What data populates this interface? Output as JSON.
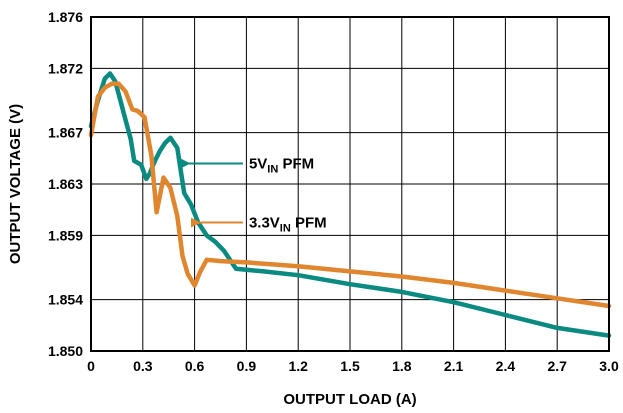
{
  "chart_data": {
    "type": "line",
    "title": "",
    "xlabel": "OUTPUT LOAD (A)",
    "ylabel": "OUTPUT VOLTAGE (V)",
    "xlim": [
      0,
      3.0
    ],
    "ylim": [
      1.85,
      1.876
    ],
    "x_ticks": [
      "0",
      "0.3",
      "0.6",
      "0.9",
      "1.2",
      "1.5",
      "1.8",
      "2.1",
      "2.4",
      "2.7",
      "3.0"
    ],
    "x_tick_values": [
      0,
      0.3,
      0.6,
      0.9,
      1.2,
      1.5,
      1.8,
      2.1,
      2.4,
      2.7,
      3.0
    ],
    "y_ticks": [
      "1.850",
      "1.854",
      "1.859",
      "1.863",
      "1.867",
      "1.872",
      "1.876"
    ],
    "y_tick_values": [
      1.85,
      1.854,
      1.859,
      1.863,
      1.867,
      1.872,
      1.876
    ],
    "grid": true,
    "series": [
      {
        "color": "#0a8a80",
        "label_main": "5V",
        "label_sub": "IN",
        "label_tail": " PFM",
        "x": [
          0,
          0.04,
          0.08,
          0.11,
          0.14,
          0.17,
          0.2,
          0.23,
          0.25,
          0.29,
          0.32,
          0.34,
          0.37,
          0.4,
          0.43,
          0.46,
          0.5,
          0.54,
          0.58,
          0.62,
          0.67,
          0.72,
          0.77,
          0.84,
          0.92,
          1.0,
          1.2,
          1.5,
          1.8,
          2.1,
          2.4,
          2.7,
          3.0
        ],
        "y": [
          1.8675,
          1.8695,
          1.8712,
          1.8716,
          1.871,
          1.8695,
          1.868,
          1.8665,
          1.8648,
          1.8645,
          1.8634,
          1.8638,
          1.8648,
          1.8656,
          1.8662,
          1.8666,
          1.8658,
          1.8623,
          1.8614,
          1.86,
          1.859,
          1.8585,
          1.8578,
          1.8564,
          1.8563,
          1.8562,
          1.8559,
          1.8552,
          1.8546,
          1.8538,
          1.8528,
          1.8518,
          1.8512
        ]
      },
      {
        "color": "#e0862f",
        "label_main": "3.3V",
        "label_sub": "IN",
        "label_tail": " PFM",
        "x": [
          0,
          0.04,
          0.08,
          0.12,
          0.16,
          0.2,
          0.24,
          0.27,
          0.31,
          0.35,
          0.38,
          0.42,
          0.46,
          0.5,
          0.53,
          0.56,
          0.6,
          0.63,
          0.67,
          0.75,
          0.9,
          1.2,
          1.5,
          1.8,
          2.1,
          2.4,
          2.7,
          3.0
        ],
        "y": [
          1.8668,
          1.8698,
          1.8705,
          1.8708,
          1.8708,
          1.8702,
          1.8688,
          1.8687,
          1.8682,
          1.8652,
          1.8608,
          1.8635,
          1.8627,
          1.8605,
          1.8574,
          1.856,
          1.8551,
          1.8561,
          1.8571,
          1.857,
          1.8569,
          1.8566,
          1.8562,
          1.8558,
          1.8553,
          1.8547,
          1.8541,
          1.8535
        ]
      }
    ],
    "annotations": [
      {
        "series_index": 0,
        "arrow_from_x": 0.88,
        "arrow_to_x": 0.53,
        "y": 1.8646
      },
      {
        "series_index": 1,
        "arrow_from_x": 0.88,
        "arrow_to_x": 0.59,
        "y": 1.86
      }
    ]
  }
}
